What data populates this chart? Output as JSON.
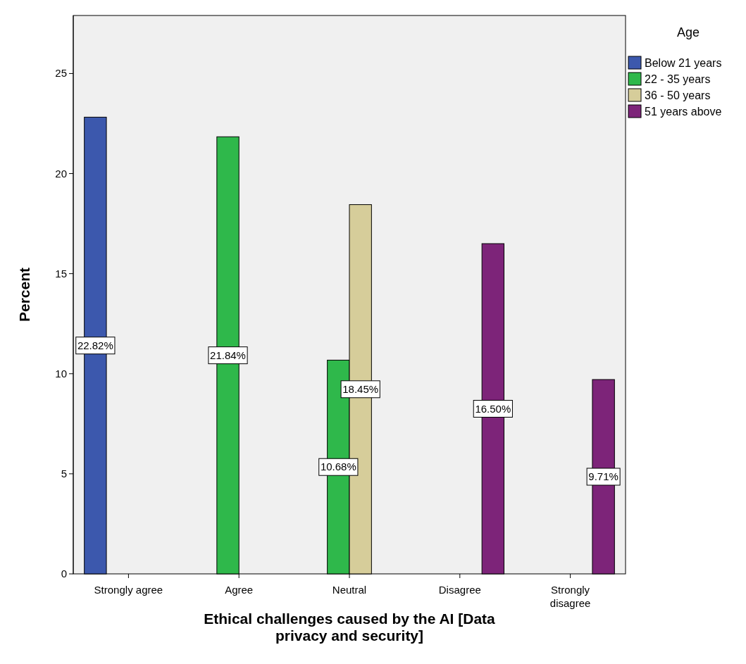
{
  "chart_data": {
    "type": "bar",
    "xlabel": "Ethical challenges caused by the AI [Data privacy and security]",
    "ylabel": "Percent",
    "legend_title": "Age",
    "categories": [
      "Strongly agree",
      "Agree",
      "Neutral",
      "Disagree",
      "Strongly disagree"
    ],
    "series": [
      {
        "name": "Below 21 years",
        "color": "#3c58ad",
        "values": [
          22.82,
          null,
          null,
          null,
          null
        ],
        "value_labels": [
          "22.82%",
          null,
          null,
          null,
          null
        ]
      },
      {
        "name": "22 - 35 years",
        "color": "#2fb84b",
        "values": [
          null,
          21.84,
          10.68,
          null,
          null
        ],
        "value_labels": [
          null,
          "21.84%",
          "10.68%",
          null,
          null
        ]
      },
      {
        "name": "36 - 50 years",
        "color": "#d6cd9a",
        "values": [
          null,
          null,
          18.45,
          null,
          null
        ],
        "value_labels": [
          null,
          null,
          "18.45%",
          null,
          null
        ]
      },
      {
        "name": "51 years above",
        "color": "#7d2479",
        "values": [
          null,
          null,
          null,
          16.5,
          9.71
        ],
        "value_labels": [
          null,
          null,
          null,
          "16.50%",
          "9.71%"
        ]
      }
    ],
    "ylim": [
      0,
      27.9
    ],
    "yticks": [
      0,
      5,
      10,
      15,
      20,
      25
    ],
    "grid": false,
    "legend": "top right"
  }
}
